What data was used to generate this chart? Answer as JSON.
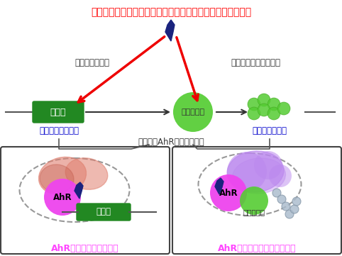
{
  "title_text": "低分子化学物質（環境汚染物質や脂溶性生理活性物質など）",
  "title_color": "#ff0000",
  "bg_color": "#ffffff",
  "label_traditional": "（従来の経路）",
  "label_new": "（今回わかった経路）",
  "label_gene": "遺伝子",
  "label_protein": "タンパク質",
  "label_gene_induction": "遺伝子発現の誘導",
  "label_protein_degradation": "タンパク質分解",
  "label_complex": "（異なるAhR複合体形成）",
  "label_ahr": "AhR",
  "label_gene2": "遺伝子",
  "label_protein2": "タンパク質",
  "caption_left": "AhRは遺伝子発現を制御",
  "caption_right": "AhRはタンパク質分解を制御",
  "caption_color": "#ff44ff",
  "gene_box_color": "#228822",
  "protein_circle_color": "#55cc33",
  "small_proteins_color": "#55cc33",
  "ahr_color": "#ee44ee",
  "dark_color": "#1a237e",
  "red_color": "#ee0000",
  "salmon_color": "#e08070",
  "salmon_dark": "#c05848",
  "purple_color": "#bb88ee",
  "dashed_color": "#999999",
  "bead_color": "#aabbcc"
}
